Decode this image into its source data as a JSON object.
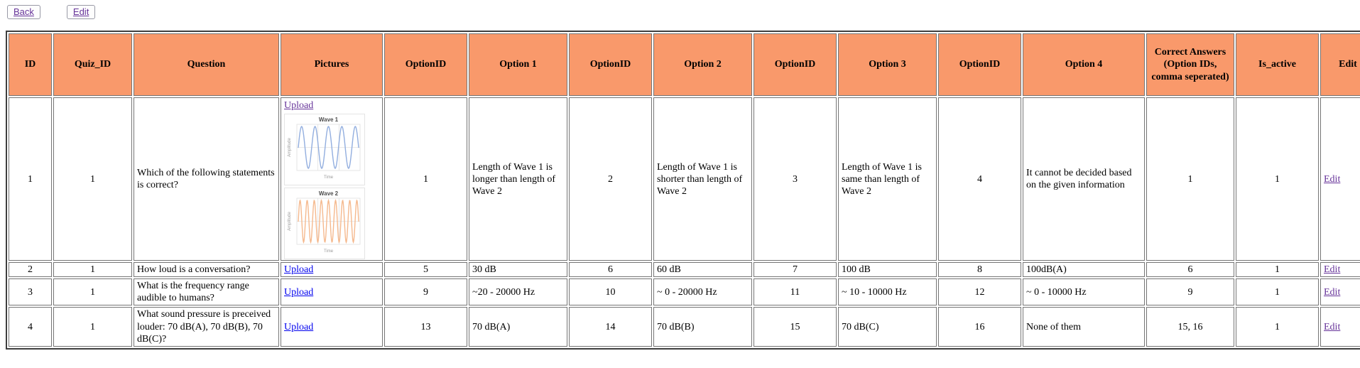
{
  "toolbar": {
    "back_label": "Back",
    "edit_label": "Edit"
  },
  "colors": {
    "header_bg": "#F9996B",
    "link_blue": "#0000EE",
    "link_visited": "#663399",
    "cell_border": "#757575",
    "frame_border": "#3F3F3F",
    "wave1_stroke": "#92AEDF",
    "wave2_stroke": "#F5B98E"
  },
  "table": {
    "headers": [
      "ID",
      "Quiz_ID",
      "Question",
      "Pictures",
      "OptionID",
      "Option 1",
      "OptionID",
      "Option 2",
      "OptionID",
      "Option 3",
      "OptionID",
      "Option 4",
      "Correct Answers (Option IDs, comma seperated)",
      "Is_active",
      "Edit"
    ],
    "rows": [
      {
        "id": "1",
        "quiz_id": "1",
        "question": "Which of the following statements is correct?",
        "upload_label": "Upload",
        "optid1": "1",
        "opt1": "Length of Wave 1 is longer than length of Wave 2",
        "optid2": "2",
        "opt2": "Length of Wave 1 is shorter than length of Wave 2",
        "optid3": "3",
        "opt3": "Length of Wave 1 is same than length of Wave 2",
        "optid4": "4",
        "opt4": "It cannot be decided based on the given information",
        "correct": "1",
        "is_active": "1",
        "edit_label": "Edit"
      },
      {
        "id": "2",
        "quiz_id": "1",
        "question": "How loud is a conversation?",
        "upload_label": "Upload",
        "optid1": "5",
        "opt1": "30 dB",
        "optid2": "6",
        "opt2": "60 dB",
        "optid3": "7",
        "opt3": "100 dB",
        "optid4": "8",
        "opt4": "100dB(A)",
        "correct": "6",
        "is_active": "1",
        "edit_label": "Edit"
      },
      {
        "id": "3",
        "quiz_id": "1",
        "question": "What is the frequency range audible to humans?",
        "upload_label": "Upload",
        "optid1": "9",
        "opt1": "~20 - 20000 Hz",
        "optid2": "10",
        "opt2": "~ 0 - 20000 Hz",
        "optid3": "11",
        "opt3": "~ 10 - 10000 Hz",
        "optid4": "12",
        "opt4": "~ 0 - 10000 Hz",
        "correct": "9",
        "is_active": "1",
        "edit_label": "Edit"
      },
      {
        "id": "4",
        "quiz_id": "1",
        "question": "What sound pressure is preceived louder: 70 dB(A), 70 dB(B), 70 dB(C)?",
        "upload_label": "Upload",
        "optid1": "13",
        "opt1": "70 dB(A)",
        "optid2": "14",
        "opt2": "70 dB(B)",
        "optid3": "15",
        "opt3": "70 dB(C)",
        "optid4": "16",
        "opt4": "None of them",
        "correct": "15, 16",
        "is_active": "1",
        "edit_label": "Edit"
      }
    ]
  },
  "chart_data": [
    {
      "type": "line",
      "title": "Wave 1",
      "xlabel": "Time",
      "ylabel": "Amplitude",
      "grid": true,
      "color": "#92AEDF",
      "series": [
        {
          "name": "Wave 1",
          "waveform": "sine",
          "cycles_shown": 4.5,
          "amplitude": 1
        }
      ]
    },
    {
      "type": "line",
      "title": "Wave 2",
      "xlabel": "Time",
      "ylabel": "Amplitude",
      "grid": true,
      "color": "#F5B98E",
      "series": [
        {
          "name": "Wave 2",
          "waveform": "sine",
          "cycles_shown": 8.5,
          "amplitude": 1
        }
      ]
    }
  ]
}
